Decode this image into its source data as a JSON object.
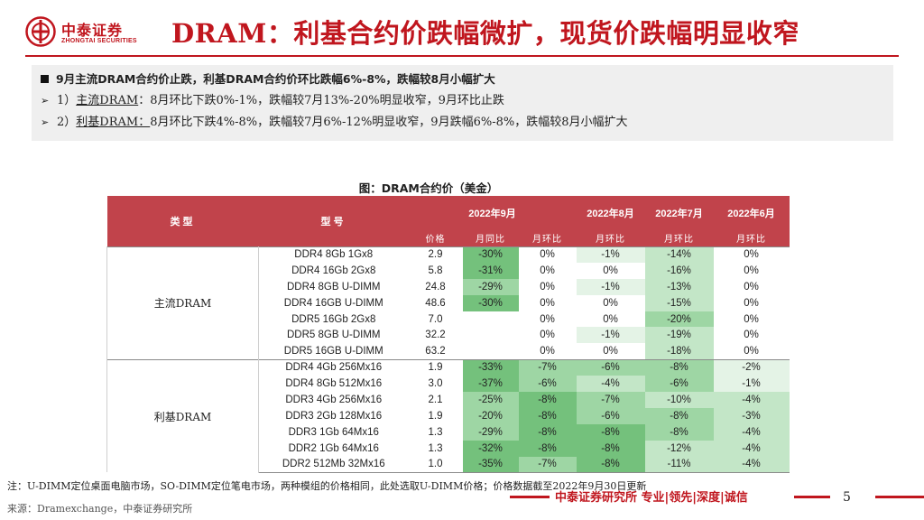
{
  "logo": {
    "name_cn": "中泰证券",
    "name_en": "ZHONGTAI SECURITIES"
  },
  "title": "DRAM：利基合约价跌幅微扩，现货价跌幅明显收窄",
  "summary": {
    "headline": "9月主流DRAM合约价止跌，利基DRAM合约价环比跌幅6%-8%，跌幅较8月小幅扩大",
    "points": [
      {
        "prefix": "1）",
        "label": "主流DRAM",
        "text": "：8月环比下跌0%-1%，跌幅较7月13%-20%明显收窄，9月环比止跌"
      },
      {
        "prefix": "2）",
        "label": "利基DRAM：",
        "text": "8月环比下跌4%-8%，跌幅较7月6%-12%明显收窄，9月跌幅6%-8%，跌幅较8月小幅扩大"
      }
    ]
  },
  "figure": {
    "title": "图：DRAM合约价（美金）",
    "headers": {
      "category": "类型",
      "model": "型号",
      "month_sep": "2022年9月",
      "month_aug": "2022年8月",
      "month_jul": "2022年7月",
      "month_jun": "2022年6月",
      "price": "价格",
      "yoy": "月同比",
      "mom": "月环比"
    },
    "groups": [
      {
        "name": "主流DRAM",
        "rows": [
          {
            "model": "DDR4 8Gb 1Gx8",
            "price": "2.9",
            "yoy": "-30%",
            "mom": "0%",
            "aug": "-1%",
            "jul": "-14%",
            "jun": "0%"
          },
          {
            "model": "DDR4 16Gb 2Gx8",
            "price": "5.8",
            "yoy": "-31%",
            "mom": "0%",
            "aug": "0%",
            "jul": "-16%",
            "jun": "0%"
          },
          {
            "model": "DDR4 8GB  U-DIMM",
            "price": "24.8",
            "yoy": "-29%",
            "mom": "0%",
            "aug": "-1%",
            "jul": "-13%",
            "jun": "0%"
          },
          {
            "model": "DDR4 16GB  U-DIMM",
            "price": "48.6",
            "yoy": "-30%",
            "mom": "0%",
            "aug": "0%",
            "jul": "-15%",
            "jun": "0%"
          },
          {
            "model": "DDR5 16Gb  2Gx8",
            "price": "7.0",
            "yoy": "",
            "mom": "0%",
            "aug": "0%",
            "jul": "-20%",
            "jun": "0%"
          },
          {
            "model": "DDR5 8GB  U-DIMM",
            "price": "32.2",
            "yoy": "",
            "mom": "0%",
            "aug": "-1%",
            "jul": "-19%",
            "jun": "0%"
          },
          {
            "model": "DDR5 16GB  U-DIMM",
            "price": "63.2",
            "yoy": "",
            "mom": "0%",
            "aug": "0%",
            "jul": "-18%",
            "jun": "0%"
          }
        ]
      },
      {
        "name": "利基DRAM",
        "rows": [
          {
            "model": "DDR4 4Gb 256Mx16",
            "price": "1.9",
            "yoy": "-33%",
            "mom": "-7%",
            "aug": "-6%",
            "jul": "-8%",
            "jun": "-2%"
          },
          {
            "model": "DDR4 8Gb 512Mx16",
            "price": "3.0",
            "yoy": "-37%",
            "mom": "-6%",
            "aug": "-4%",
            "jul": "-6%",
            "jun": "-1%"
          },
          {
            "model": "DDR3 4Gb 256Mx16",
            "price": "2.1",
            "yoy": "-25%",
            "mom": "-8%",
            "aug": "-7%",
            "jul": "-10%",
            "jun": "-4%"
          },
          {
            "model": "DDR3 2Gb 128Mx16",
            "price": "1.9",
            "yoy": "-20%",
            "mom": "-8%",
            "aug": "-6%",
            "jul": "-8%",
            "jun": "-3%"
          },
          {
            "model": "DDR3 1Gb 64Mx16",
            "price": "1.3",
            "yoy": "-29%",
            "mom": "-8%",
            "aug": "-8%",
            "jul": "-8%",
            "jun": "-4%"
          },
          {
            "model": "DDR2 1Gb 64Mx16",
            "price": "1.3",
            "yoy": "-32%",
            "mom": "-8%",
            "aug": "-8%",
            "jul": "-12%",
            "jun": "-4%"
          },
          {
            "model": "DDR2 512Mb 32Mx16",
            "price": "1.0",
            "yoy": "-35%",
            "mom": "-7%",
            "aug": "-8%",
            "jul": "-11%",
            "jun": "-4%"
          }
        ]
      }
    ]
  },
  "note": "注：U-DIMM定位桌面电脑市场，SO-DIMM定位笔电市场，两种模组的价格相同，此处选取U-DIMM价格；价格数据截至2022年9月30日更新",
  "source": "来源：Dramexchange，中泰证券研究所",
  "footer_slogan": "中泰证券研究所 专业|领先|深度|诚信",
  "page_number": "5",
  "colors": {
    "brand_red": "#c0161e",
    "header_red": "#c1434b",
    "summary_bg": "#efefef"
  }
}
